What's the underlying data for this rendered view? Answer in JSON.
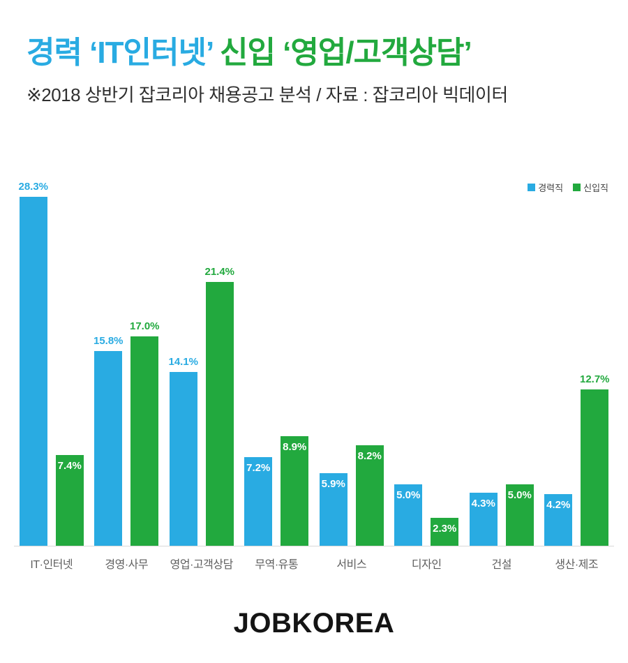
{
  "header": {
    "title_blue": "경력 ‘IT인터넷’",
    "title_green": " 신입 ‘영업/고객상담’",
    "subtitle": "※2018 상반기 잡코리아 채용공고 분석  / 자료 : 잡코리아  빅데이터"
  },
  "legend": [
    {
      "label": "경력직",
      "color": "#29ABE2"
    },
    {
      "label": "신입직",
      "color": "#22A93E"
    }
  ],
  "chart_data": {
    "type": "bar",
    "title": "경력 ‘IT인터넷’ 신입 ‘영업/고객상담’",
    "subtitle": "※2018 상반기 잡코리아 채용공고 분석 / 자료 : 잡코리아 빅데이터",
    "categories": [
      "IT·인터넷",
      "경영·사무",
      "영업·고객상담",
      "무역·유통",
      "서비스",
      "디자인",
      "건설",
      "생산·제조"
    ],
    "series": [
      {
        "name": "경력직",
        "color": "#29ABE2",
        "values": [
          28.3,
          15.8,
          14.1,
          7.2,
          5.9,
          5.0,
          4.3,
          4.2
        ]
      },
      {
        "name": "신입직",
        "color": "#22A93E",
        "values": [
          7.4,
          17.0,
          21.4,
          8.9,
          8.2,
          2.3,
          5.0,
          12.7
        ]
      }
    ],
    "value_suffix": "%",
    "ylim": [
      0,
      30
    ],
    "label_outside_threshold": 12,
    "grid": false,
    "legend_position": "top-right"
  },
  "footer": {
    "logo_text": "JOBKOREA"
  },
  "colors": {
    "blue": "#29ABE2",
    "green": "#22A93E",
    "subtitle_text": "#2f2f2f",
    "category_text": "#5f5f5f",
    "baseline": "#d8d8d8",
    "inside_label": "#ffffff"
  }
}
